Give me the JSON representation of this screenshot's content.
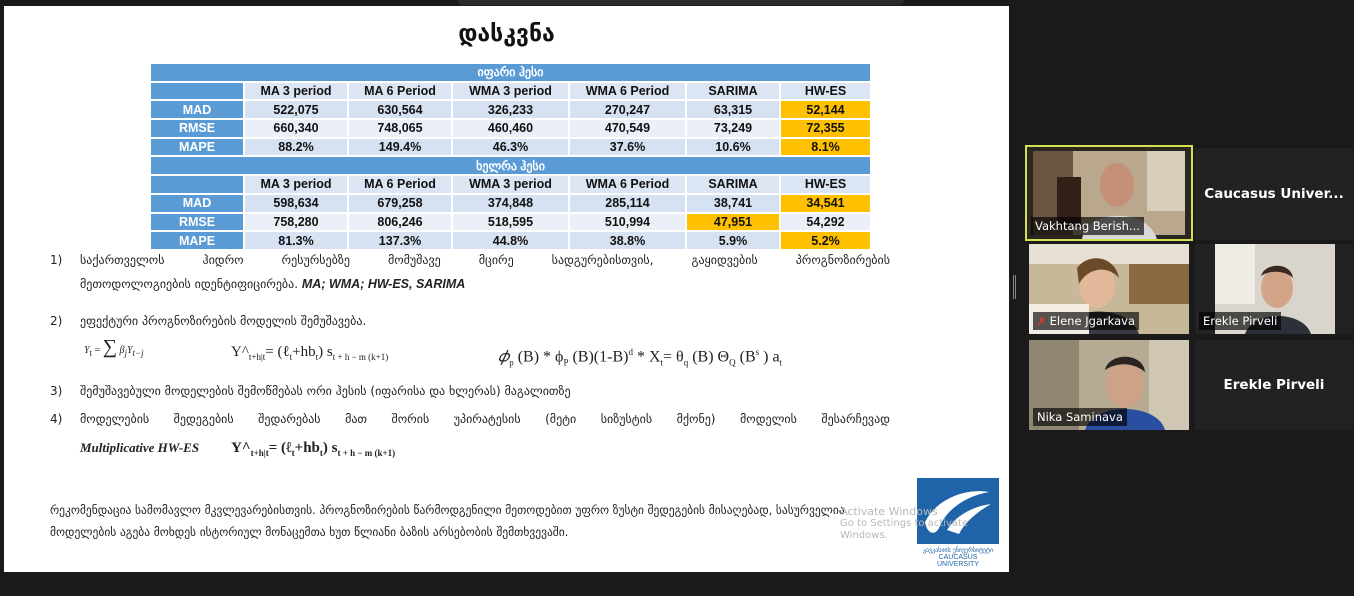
{
  "slide": {
    "title": "დასკვნა",
    "tables": [
      {
        "band_label": "იფარი ჰესი",
        "columns": [
          "MA 3 period",
          "MA 6 Period",
          "WMA 3 period",
          "WMA 6 Period",
          "SARIMA",
          "HW-ES"
        ],
        "rows": [
          {
            "metric": "MAD",
            "values": [
              "522,075",
              "630,564",
              "326,233",
              "270,247",
              "63,315",
              "52,144"
            ],
            "best_col": 5
          },
          {
            "metric": "RMSE",
            "values": [
              "660,340",
              "748,065",
              "460,460",
              "470,549",
              "73,249",
              "72,355"
            ],
            "best_col": 5
          },
          {
            "metric": "MAPE",
            "values": [
              "88.2%",
              "149.4%",
              "46.3%",
              "37.6%",
              "10.6%",
              "8.1%"
            ],
            "best_col": 5
          }
        ]
      },
      {
        "band_label": "ხელრა ჰესი",
        "columns": [
          "MA 3 period",
          "MA 6 Period",
          "WMA 3 period",
          "WMA 6 Period",
          "SARIMA",
          "HW-ES"
        ],
        "rows": [
          {
            "metric": "MAD",
            "values": [
              "598,634",
              "679,258",
              "374,848",
              "285,114",
              "38,741",
              "34,541"
            ],
            "best_col": 5
          },
          {
            "metric": "RMSE",
            "values": [
              "758,280",
              "806,246",
              "518,595",
              "510,994",
              "47,951",
              "54,292"
            ],
            "best_col": 4
          },
          {
            "metric": "MAPE",
            "values": [
              "81.3%",
              "137.3%",
              "44.8%",
              "38.8%",
              "5.9%",
              "5.2%"
            ],
            "best_col": 5
          }
        ]
      }
    ],
    "highlight_color": "#ffc000",
    "band_color": "#5b9bd5",
    "items": [
      {
        "num": "1)",
        "line1": "საქართველოს ჰიდრო რესურსებზე მომუშავე მცირე სადგურებისთვის, გაყიდვების პროგნოზირების",
        "line2": "მეთოდოლოგიების იდენტიფიცირება.",
        "emph": "MA; WMA; HW-ES, SARIMA"
      },
      {
        "num": "2)",
        "text": "ეფექტური პროგნოზირების მოდელის შემუშავება."
      },
      {
        "num": "3)",
        "text": "შემუშავებული მოდელების შემოწმებას ორი ჰესის (იფარისა და ხლერას) მაგალითზე"
      },
      {
        "num": "4)",
        "text": "მოდელების შედეგების შედარებას მათ შორის უპირატესის (მეტი სიზუსტის მქონე) მოდელის შესარჩევად"
      }
    ],
    "formulas": {
      "ma": "Y",
      "hw_additive": "Y^",
      "sarima_lhs": "𝜙",
      "multiplicative_label": "Multiplicative HW-ES"
    },
    "recommendation_line1": "რეკომენდაცია სამომავლო მკვლევარებისთვის. პროგნოზირების წარმოდგენილი მეთოდებით უფრო ზუსტი შედეგების მისაღებად, სასურველია",
    "recommendation_line2": "მოდელების აგება მოხდეს ისტორიულ მონაცემთა ხუთ წლიანი ბაზის არსებობის შემთხვევაში.",
    "watermark_line1": "Activate Windows",
    "watermark_line2": "Go to Settings to activate Windows.",
    "logo_geo": "კავკასიის უნივერსიტეტი",
    "logo_en": "CAUCASUS UNIVERSITY"
  },
  "participants": {
    "speaker_name": "Vakhtang Berish...",
    "caucasus_label": "Caucasus  Univer...",
    "elene_name": "Elene Jgarkava",
    "erekle_small_name": "Erekle Pirveli",
    "nika_name": "Nika Saminava",
    "erekle_tile_label": "Erekle Pirveli"
  }
}
